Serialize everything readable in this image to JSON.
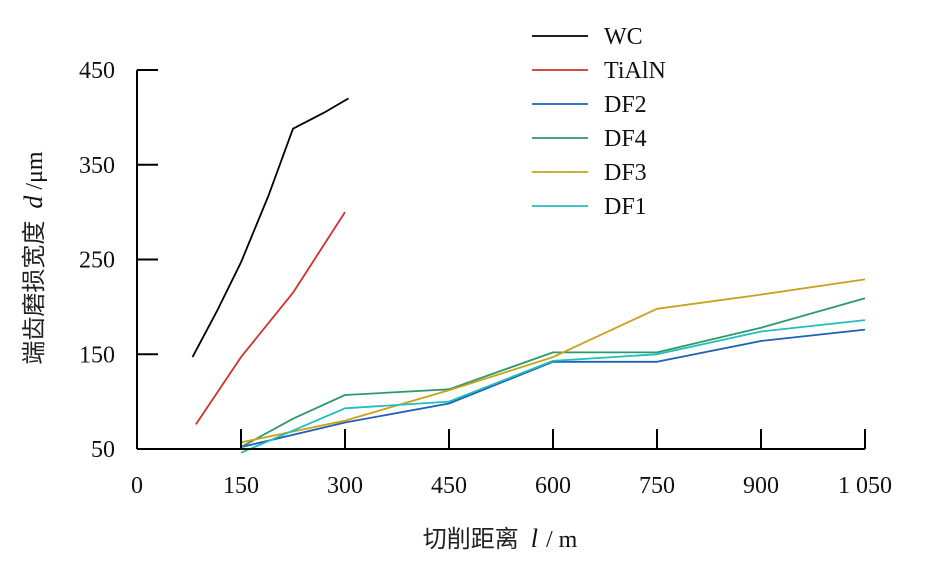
{
  "chart_data": {
    "type": "line",
    "xlabel": {
      "text": "切削距离",
      "var": "l",
      "unit": "/ m"
    },
    "ylabel": {
      "text": "端齿磨损宽度",
      "var": "d",
      "unit": "/μm"
    },
    "xlim": [
      0,
      1050
    ],
    "ylim": [
      50,
      450
    ],
    "x_ticks": [
      {
        "value": 0,
        "label": "0"
      },
      {
        "value": 150,
        "label": "150"
      },
      {
        "value": 300,
        "label": "300"
      },
      {
        "value": 450,
        "label": "450"
      },
      {
        "value": 600,
        "label": "600"
      },
      {
        "value": 750,
        "label": "750"
      },
      {
        "value": 900,
        "label": "900"
      },
      {
        "value": 1050,
        "label": "1 050"
      }
    ],
    "y_ticks": [
      {
        "value": 450,
        "label": "450"
      },
      {
        "value": 350,
        "label": "350"
      },
      {
        "value": 250,
        "label": "250"
      },
      {
        "value": 150,
        "label": "150"
      },
      {
        "value": 50,
        "label": "50"
      }
    ],
    "grid": false,
    "legend_position": "top-right",
    "series": [
      {
        "name": "WC",
        "color": "#000000",
        "points": [
          [
            80,
            147
          ],
          [
            115,
            195
          ],
          [
            150,
            247
          ],
          [
            190,
            318
          ],
          [
            225,
            388
          ],
          [
            270,
            405
          ],
          [
            305,
            420
          ]
        ]
      },
      {
        "name": "TiAlN",
        "color": "#d0312d",
        "points": [
          [
            85,
            76
          ],
          [
            150,
            147
          ],
          [
            225,
            215
          ],
          [
            300,
            300
          ]
        ]
      },
      {
        "name": "DF2",
        "color": "#1f5fb5",
        "points": [
          [
            150,
            52
          ],
          [
            300,
            78
          ],
          [
            450,
            98
          ],
          [
            600,
            142
          ],
          [
            750,
            142
          ],
          [
            900,
            164
          ],
          [
            1050,
            176
          ]
        ]
      },
      {
        "name": "DF4",
        "color": "#2e9a6a",
        "points": [
          [
            150,
            52
          ],
          [
            225,
            82
          ],
          [
            300,
            107
          ],
          [
            450,
            113
          ],
          [
            600,
            152
          ],
          [
            750,
            152
          ],
          [
            900,
            178
          ],
          [
            1050,
            209
          ]
        ]
      },
      {
        "name": "DF3",
        "color": "#c8a21b",
        "points": [
          [
            150,
            57
          ],
          [
            300,
            80
          ],
          [
            450,
            112
          ],
          [
            600,
            147
          ],
          [
            750,
            198
          ],
          [
            900,
            213
          ],
          [
            1050,
            229
          ]
        ]
      },
      {
        "name": "DF1",
        "color": "#1fbfbf",
        "points": [
          [
            150,
            46
          ],
          [
            300,
            93
          ],
          [
            450,
            100
          ],
          [
            600,
            143
          ],
          [
            750,
            150
          ],
          [
            900,
            174
          ],
          [
            1050,
            186
          ]
        ]
      }
    ]
  }
}
